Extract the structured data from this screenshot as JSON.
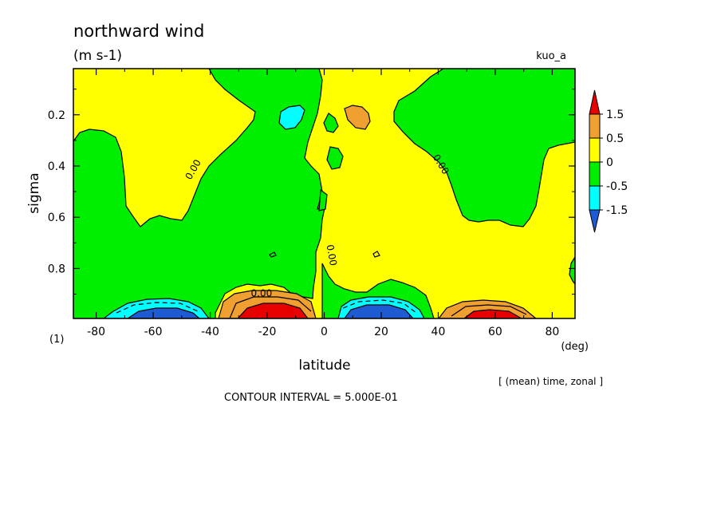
{
  "chart_data": {
    "type": "contour",
    "title": "northward wind",
    "units": "(m s-1)",
    "dataset": "kuo_a",
    "xlabel": "latitude",
    "x_units": "(deg)",
    "ylabel": "sigma",
    "panel_label": "(1)",
    "note": "[ (mean) time, zonal ]",
    "contour_interval": "CONTOUR INTERVAL = 5.000E-01",
    "xlim": [
      -88,
      88
    ],
    "ylim": [
      0.02,
      0.995
    ],
    "y_inverted": true,
    "x_ticks": [
      -80,
      -60,
      -40,
      -20,
      0,
      20,
      40,
      60,
      80
    ],
    "x_tick_labels": [
      "-80",
      "-60",
      "-40",
      "-20",
      "0",
      "20",
      "40",
      "60",
      "80"
    ],
    "y_ticks": [
      0.2,
      0.4,
      0.6,
      0.8
    ],
    "y_tick_labels": [
      "0.2",
      "0.4",
      "0.6",
      "0.8"
    ],
    "contour_labels": [
      {
        "text": "0.00",
        "lat": -45,
        "sigma": 0.42,
        "angle": -60
      },
      {
        "text": "0.00",
        "lat": 40,
        "sigma": 0.4,
        "angle": 58
      },
      {
        "text": "0.00",
        "lat": 1.5,
        "sigma": 0.75,
        "angle": 80
      },
      {
        "text": "0.00",
        "lat": -22,
        "sigma": 0.91,
        "angle": 0
      }
    ],
    "colorbar": {
      "levels": [
        -1.5,
        -0.5,
        0,
        0.5,
        1.5
      ],
      "labels": [
        "1.5",
        "0.5",
        "0",
        "-0.5",
        "-1.5"
      ],
      "colors": [
        "#e60000",
        "#f0a030",
        "#ffff00",
        "#00ee00",
        "#00ffff",
        "#1e5ad2"
      ]
    },
    "features": [
      {
        "name": "southern low-level negative cell",
        "center_lat": -55,
        "center_sigma": 0.99,
        "min_value_approx": -2.0
      },
      {
        "name": "subtropical south positive cell",
        "center_lat": -18,
        "center_sigma": 0.98,
        "max_value_approx": 2.5
      },
      {
        "name": "tropical north negative cell",
        "center_lat": 15,
        "center_sigma": 0.98,
        "min_value_approx": -2.5
      },
      {
        "name": "northern low-level positive cell",
        "center_lat": 60,
        "center_sigma": 0.99,
        "max_value_approx": 2.0
      },
      {
        "name": "upper positive patch",
        "center_lat": 12,
        "center_sigma": 0.2,
        "value_range": [
          0.5,
          1.5
        ]
      },
      {
        "name": "upper negative patch",
        "center_lat": -12,
        "center_sigma": 0.21,
        "value_range": [
          -1.5,
          -0.5
        ]
      }
    ],
    "grid": false
  }
}
